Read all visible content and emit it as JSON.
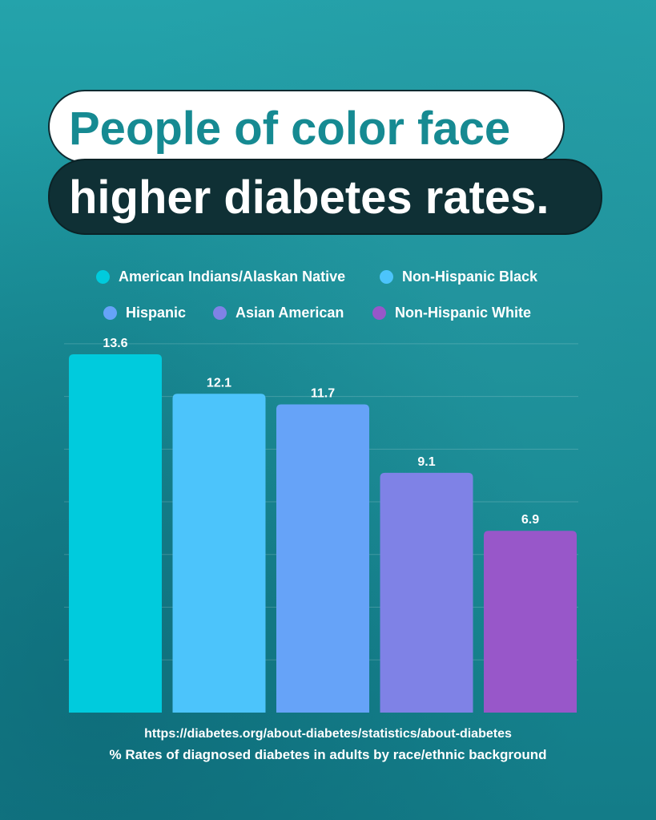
{
  "title": {
    "line1": "People of color face",
    "line2": "higher diabetes rates."
  },
  "legend": [
    {
      "label": "American Indians/Alaskan Native",
      "color": "#00cbdd"
    },
    {
      "label": "Non-Hispanic Black",
      "color": "#4cc4fb"
    },
    {
      "label": "Hispanic",
      "color": "#66a3f8"
    },
    {
      "label": "Asian American",
      "color": "#7f82e6"
    },
    {
      "label": "Non-Hispanic White",
      "color": "#9857c9"
    }
  ],
  "chart_data": {
    "type": "bar",
    "categories": [
      "American Indians/Alaskan Native",
      "Non-Hispanic Black",
      "Hispanic",
      "Asian American",
      "Non-Hispanic White"
    ],
    "values": [
      13.6,
      12.1,
      11.7,
      9.1,
      6.9
    ],
    "value_labels": [
      "13.6",
      "12.1",
      "11.7",
      "9.1",
      "6.9"
    ],
    "colors": [
      "#00cbdd",
      "#4cc4fb",
      "#66a3f8",
      "#7f82e6",
      "#9857c9"
    ],
    "ylim": [
      0,
      14
    ],
    "grid": true,
    "legend_position": "top",
    "title": "People of color face higher diabetes rates.",
    "xlabel": "",
    "ylabel": "% Rates of diagnosed diabetes in adults by race/ethnic background"
  },
  "footer": {
    "source": "https://diabetes.org/about-diabetes/statistics/about-diabetes",
    "caption": "% Rates of diagnosed diabetes in adults by race/ethnic background"
  }
}
